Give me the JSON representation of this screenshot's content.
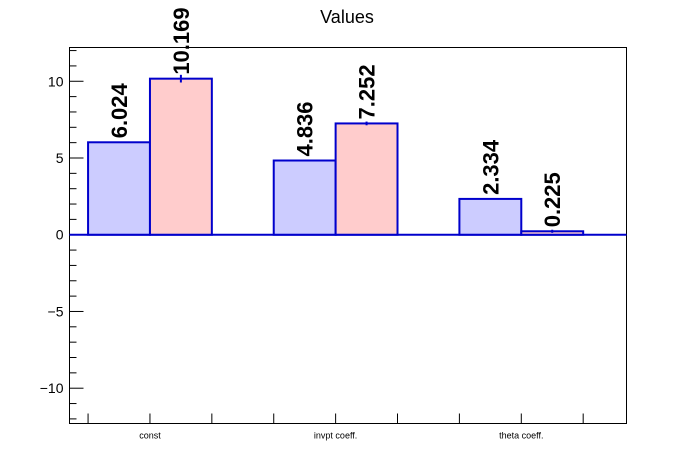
{
  "chart_data": {
    "type": "bar",
    "title": "Values",
    "categories": [
      "const",
      "invpt coeff.",
      "theta coeff."
    ],
    "series": [
      {
        "values": [
          6.024,
          4.836,
          2.334
        ],
        "labels": [
          "6.024",
          "4.836",
          "2.334"
        ],
        "color": "#ccccff",
        "stroke": "#0000cc"
      },
      {
        "values": [
          10.169,
          7.252,
          0.225
        ],
        "labels": [
          "10.169",
          "7.252",
          "0.225"
        ],
        "errors": [
          0.25,
          0.12,
          0.1
        ],
        "color": "#ffcccc",
        "stroke": "#0000cc"
      }
    ],
    "ylim": [
      -12.3,
      12.2
    ],
    "yticks": [
      -10,
      -5,
      0,
      5,
      10
    ],
    "ytick_labels": [
      "−10",
      "−5",
      "0",
      "5",
      "10"
    ],
    "xlabel": "",
    "ylabel": "",
    "grid": false
  }
}
